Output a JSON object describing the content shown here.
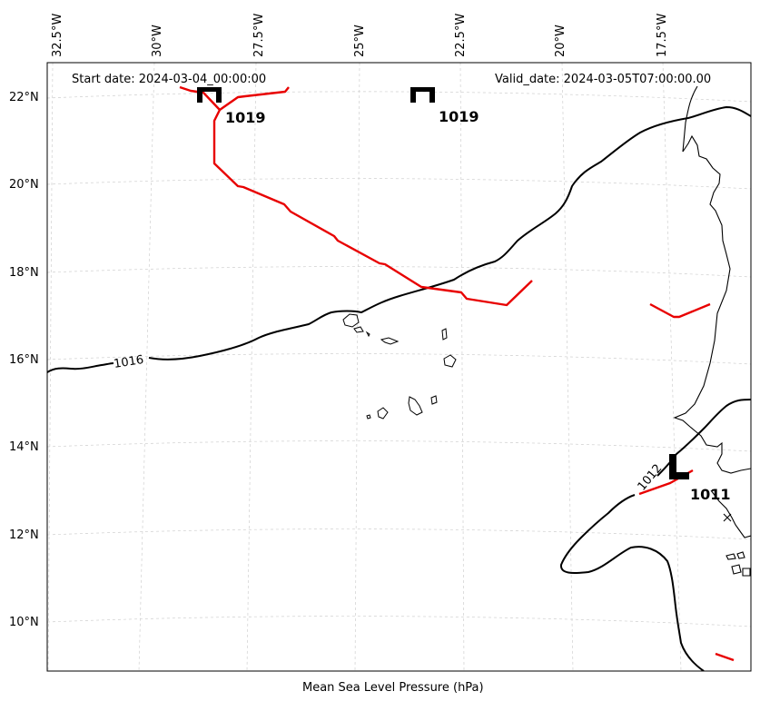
{
  "header": {
    "start_date": "Start date: 2024-03-04_00:00:00",
    "valid_date": "Valid_date: 2024-03-05T07:00:00.00"
  },
  "caption": "Mean Sea Level Pressure (hPa)",
  "lon_ticks": [
    "32.5°W",
    "30°W",
    "27.5°W",
    "25°W",
    "22.5°W",
    "20°W",
    "17.5°W"
  ],
  "lat_ticks": [
    "22°N",
    "20°N",
    "18°N",
    "16°N",
    "14°N",
    "12°N",
    "10°N"
  ],
  "isobar_labels": [
    "1016",
    "1012"
  ],
  "pressure_centers": [
    {
      "type": "H",
      "value": "1019"
    },
    {
      "type": "H",
      "value": "1019"
    },
    {
      "type": "L",
      "value": "1011"
    }
  ],
  "colors": {
    "front": "#e80000",
    "isobar": "#000000",
    "gridline": "#cfcfcf"
  }
}
